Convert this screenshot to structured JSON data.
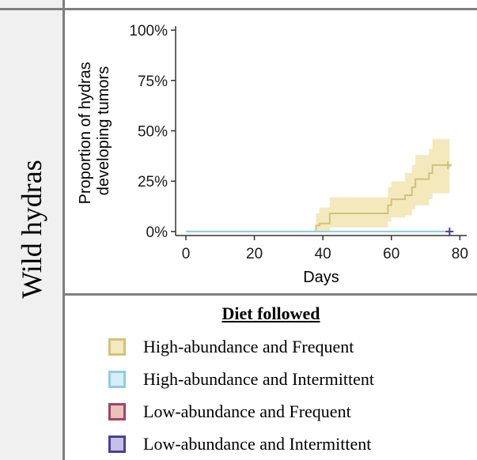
{
  "row_label": "Wild hydras",
  "chart_data": {
    "type": "line",
    "title": "",
    "xlabel": "Days",
    "ylabel_lines": [
      "Proportion of hydras",
      "developing tumors"
    ],
    "xlim": [
      -3,
      82
    ],
    "ylim": [
      -0.02,
      1.02
    ],
    "xticks": [
      0,
      20,
      40,
      60,
      80
    ],
    "yticks": [
      {
        "value": 0.0,
        "label": "0%"
      },
      {
        "value": 0.25,
        "label": "25%"
      },
      {
        "value": 0.5,
        "label": "50%"
      },
      {
        "value": 0.75,
        "label": "75%"
      },
      {
        "value": 1.0,
        "label": "100%"
      }
    ],
    "grid": false,
    "series": [
      {
        "name": "High-abundance and Frequent",
        "color": "#d2c27a",
        "band_color": "#f3e9bd",
        "step": true,
        "points": [
          {
            "x": 0,
            "y": 0.0,
            "lo": 0.0,
            "hi": 0.0
          },
          {
            "x": 38,
            "y": 0.03,
            "lo": 0.0,
            "hi": 0.09
          },
          {
            "x": 39,
            "y": 0.04,
            "lo": 0.0,
            "hi": 0.12
          },
          {
            "x": 42,
            "y": 0.09,
            "lo": 0.02,
            "hi": 0.17
          },
          {
            "x": 59,
            "y": 0.13,
            "lo": 0.05,
            "hi": 0.22
          },
          {
            "x": 60,
            "y": 0.16,
            "lo": 0.07,
            "hi": 0.25
          },
          {
            "x": 64,
            "y": 0.18,
            "lo": 0.08,
            "hi": 0.29
          },
          {
            "x": 66,
            "y": 0.22,
            "lo": 0.11,
            "hi": 0.33
          },
          {
            "x": 67,
            "y": 0.26,
            "lo": 0.13,
            "hi": 0.38
          },
          {
            "x": 71,
            "y": 0.29,
            "lo": 0.16,
            "hi": 0.41
          },
          {
            "x": 72,
            "y": 0.33,
            "lo": 0.19,
            "hi": 0.46
          },
          {
            "x": 77,
            "y": 0.32,
            "lo": 0.19,
            "hi": 0.46
          }
        ],
        "censor": {
          "x": 76.5,
          "y": 0.33
        }
      },
      {
        "name": "High-abundance and Intermittent",
        "color": "#8ecde4",
        "band_color": "#d6eef6",
        "step": true,
        "points": [
          {
            "x": 0,
            "y": 0.0,
            "lo": 0.0,
            "hi": 0.0
          },
          {
            "x": 77,
            "y": 0.0,
            "lo": 0.0,
            "hi": 0.0
          }
        ]
      },
      {
        "name": "Low-abundance and Intermittent",
        "color": "#4b3f99",
        "step": true,
        "points": [],
        "censor": {
          "x": 77,
          "y": 0.0
        }
      }
    ]
  },
  "legend": {
    "title": "Diet followed",
    "items": [
      {
        "label": "High-abundance and Frequent",
        "border": "#d2c27a",
        "fill": "#f3e9bd"
      },
      {
        "label": "High-abundance and Intermittent",
        "border": "#8ecde4",
        "fill": "#d6eef6"
      },
      {
        "label": "Low-abundance and Frequent",
        "border": "#a8406a",
        "fill": "#e8c4b8"
      },
      {
        "label": "Low-abundance and Intermittent",
        "border": "#4b3f99",
        "fill": "#c5c1e6"
      }
    ]
  }
}
